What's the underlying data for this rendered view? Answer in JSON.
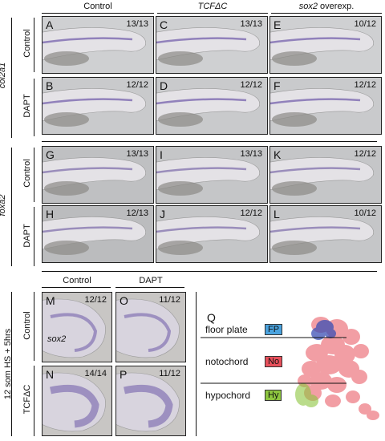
{
  "top_headers": {
    "control": "Control",
    "tcf": "TCFΔC",
    "sox2": "sox2 overexp."
  },
  "gene_labels": {
    "col2a1": "col2a1",
    "foxa2": "foxa2"
  },
  "row_labels": {
    "control": "Control",
    "dapt": "DAPT"
  },
  "panels": [
    {
      "letter": "A",
      "count": "13/13"
    },
    {
      "letter": "C",
      "count": "13/13"
    },
    {
      "letter": "E",
      "count": "10/12"
    },
    {
      "letter": "B",
      "count": "12/12"
    },
    {
      "letter": "D",
      "count": "12/12"
    },
    {
      "letter": "F",
      "count": "12/12"
    },
    {
      "letter": "G",
      "count": "13/13"
    },
    {
      "letter": "I",
      "count": "13/13"
    },
    {
      "letter": "K",
      "count": "12/12"
    },
    {
      "letter": "H",
      "count": "12/13"
    },
    {
      "letter": "J",
      "count": "12/12"
    },
    {
      "letter": "L",
      "count": "10/12"
    }
  ],
  "bottom": {
    "headers": {
      "control": "Control",
      "dapt": "DAPT"
    },
    "side_label": "12 som HS + 5hrs",
    "row_labels": {
      "control": "Control",
      "tcf": "TCFΔC"
    },
    "gene_label": "sox2",
    "panels": [
      {
        "letter": "M",
        "count": "12/12"
      },
      {
        "letter": "O",
        "count": "11/12"
      },
      {
        "letter": "N",
        "count": "14/14"
      },
      {
        "letter": "P",
        "count": "11/12"
      }
    ]
  },
  "diagram": {
    "letter": "Q",
    "items": [
      {
        "label": "floor plate",
        "tag": "FP",
        "color": "#4aa3df"
      },
      {
        "label": "notochord",
        "tag": "No",
        "color": "#e8505b"
      },
      {
        "label": "hypochord",
        "tag": "Hy",
        "color": "#8dc63f"
      }
    ]
  }
}
